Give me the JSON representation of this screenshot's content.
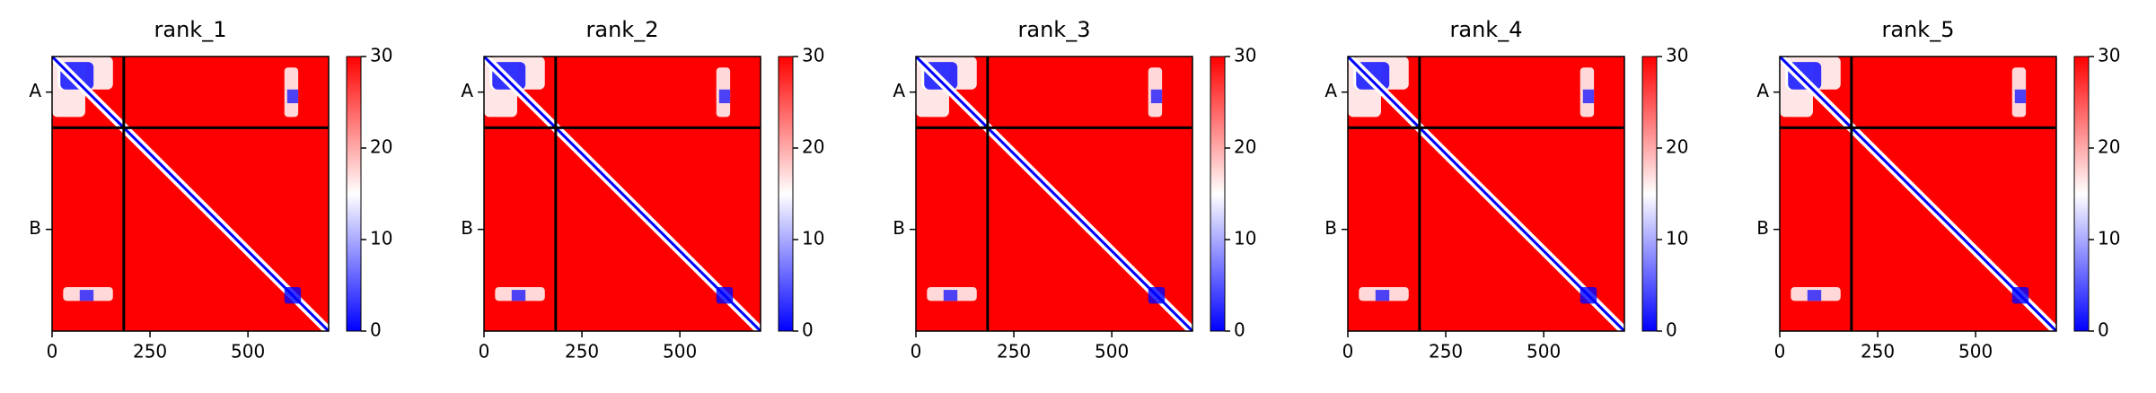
{
  "chart_data": [
    {
      "type": "heatmap",
      "title": "rank_1",
      "xlim": [
        0,
        706
      ],
      "ylim": [
        706,
        0
      ],
      "xticks": [
        0,
        250,
        500
      ],
      "yticks": [
        {
          "value": 91.5,
          "label": "A"
        },
        {
          "value": 444.5,
          "label": "B"
        }
      ],
      "chain_break": 183,
      "cmap": [
        "#0000ff",
        "#ffffff",
        "#ff0000"
      ],
      "clim": [
        0,
        30
      ],
      "cticks": [
        0,
        10,
        20,
        30
      ]
    },
    {
      "type": "heatmap",
      "title": "rank_2",
      "xlim": [
        0,
        706
      ],
      "ylim": [
        706,
        0
      ],
      "xticks": [
        0,
        250,
        500
      ],
      "yticks": [
        {
          "value": 91.5,
          "label": "A"
        },
        {
          "value": 444.5,
          "label": "B"
        }
      ],
      "chain_break": 183,
      "cmap": [
        "#0000ff",
        "#ffffff",
        "#ff0000"
      ],
      "clim": [
        0,
        30
      ],
      "cticks": [
        0,
        10,
        20,
        30
      ]
    },
    {
      "type": "heatmap",
      "title": "rank_3",
      "xlim": [
        0,
        706
      ],
      "ylim": [
        706,
        0
      ],
      "xticks": [
        0,
        250,
        500
      ],
      "yticks": [
        {
          "value": 91.5,
          "label": "A"
        },
        {
          "value": 444.5,
          "label": "B"
        }
      ],
      "chain_break": 183,
      "cmap": [
        "#0000ff",
        "#ffffff",
        "#ff0000"
      ],
      "clim": [
        0,
        30
      ],
      "cticks": [
        0,
        10,
        20,
        30
      ]
    },
    {
      "type": "heatmap",
      "title": "rank_4",
      "xlim": [
        0,
        706
      ],
      "ylim": [
        706,
        0
      ],
      "xticks": [
        0,
        250,
        500
      ],
      "yticks": [
        {
          "value": 91.5,
          "label": "A"
        },
        {
          "value": 444.5,
          "label": "B"
        }
      ],
      "chain_break": 183,
      "cmap": [
        "#0000ff",
        "#ffffff",
        "#ff0000"
      ],
      "clim": [
        0,
        30
      ],
      "cticks": [
        0,
        10,
        20,
        30
      ]
    },
    {
      "type": "heatmap",
      "title": "rank_5",
      "xlim": [
        0,
        706
      ],
      "ylim": [
        706,
        0
      ],
      "xticks": [
        0,
        250,
        500
      ],
      "yticks": [
        {
          "value": 91.5,
          "label": "A"
        },
        {
          "value": 444.5,
          "label": "B"
        }
      ],
      "chain_break": 183,
      "cmap": [
        "#0000ff",
        "#ffffff",
        "#ff0000"
      ],
      "clim": [
        0,
        30
      ],
      "cticks": [
        0,
        10,
        20,
        30
      ]
    }
  ]
}
